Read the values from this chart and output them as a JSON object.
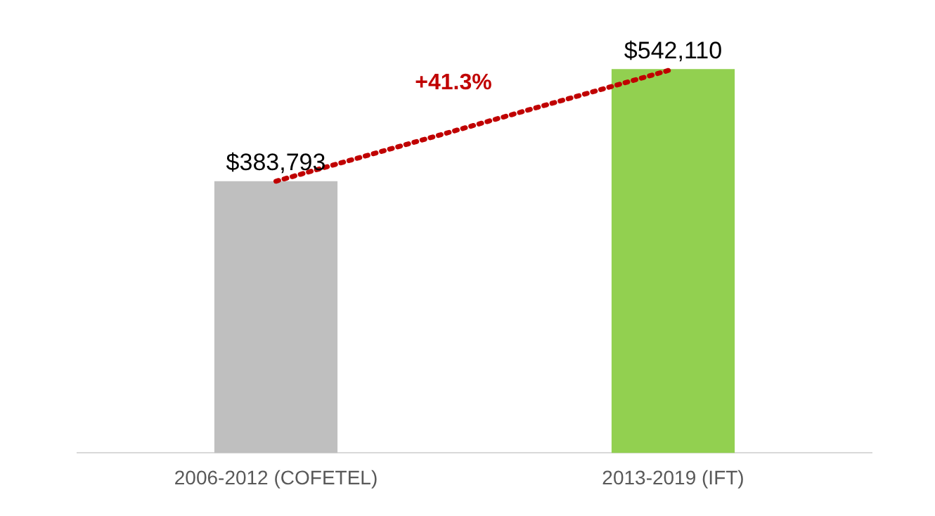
{
  "chart_data": {
    "type": "bar",
    "categories": [
      "2006-2012 (COFETEL)",
      "2013-2019 (IFT)"
    ],
    "series": [
      {
        "colors": [
          "#bfbfbf",
          "#92d050"
        ],
        "values": [
          383793,
          542110
        ],
        "value_labels": [
          "$383,793",
          "$542,110"
        ]
      },
      {
        "type": "line",
        "color": "#c00000",
        "line_style": "dotted",
        "marker": "none",
        "values": [
          383793,
          542110
        ]
      }
    ],
    "annotations": [
      "+41.3%"
    ],
    "tick_labels": "x",
    "grid": false,
    "legend": false
  }
}
